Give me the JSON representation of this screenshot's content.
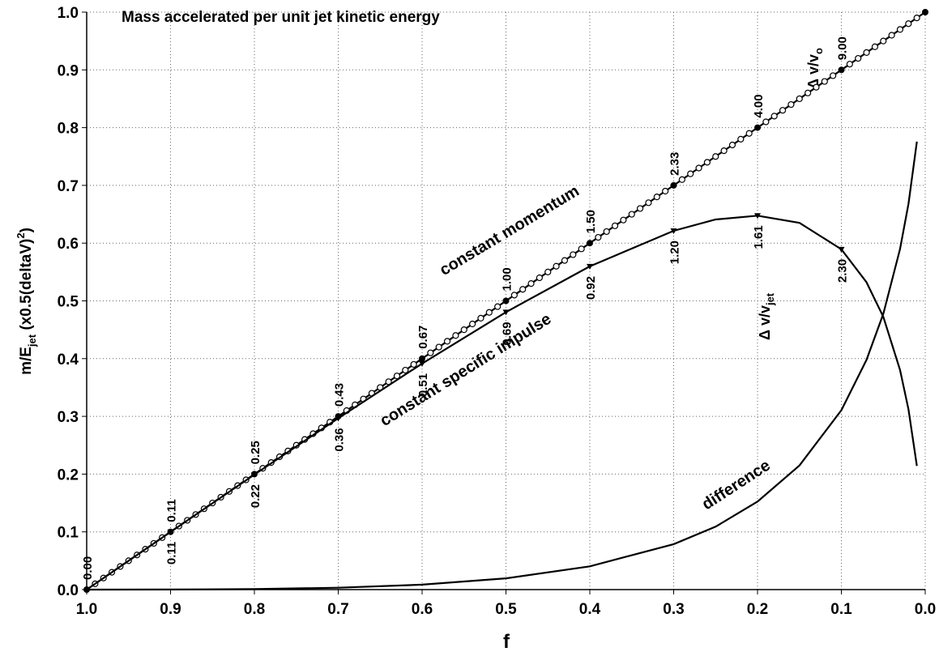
{
  "chart_data": {
    "type": "line",
    "title": "Mass accelerated per unit jet kinetic energy",
    "xlabel": "f",
    "ylabel_parts": [
      "m/E",
      "jet",
      "  (x0.5(deltaV)",
      "2",
      ")"
    ],
    "xlim": [
      1.0,
      0.0
    ],
    "ylim": [
      0,
      1
    ],
    "xticks": [
      {
        "value": 1,
        "label": "1.0"
      },
      0.9,
      0.8,
      0.7,
      0.6,
      0.5,
      0.4,
      0.3,
      0.2,
      0.1,
      {
        "value": 0,
        "label": "0.0"
      }
    ],
    "yticks": [
      {
        "value": 0,
        "label": "0.0"
      },
      0.1,
      0.2,
      0.3,
      0.4,
      0.5,
      0.6,
      0.7,
      0.8,
      0.9,
      {
        "value": 1,
        "label": "1.0"
      }
    ],
    "grid": true,
    "series": [
      {
        "name": "constant momentum",
        "color": "#000000",
        "marker": "open-circle",
        "x": [
          1.0,
          0.9,
          0.8,
          0.7,
          0.6,
          0.5,
          0.4,
          0.3,
          0.2,
          0.1,
          0.0
        ],
        "values": [
          0,
          0.1,
          0.2,
          0.3,
          0.4,
          0.5,
          0.6,
          0.7,
          0.8,
          0.9,
          1.0
        ],
        "point_labels": [
          "0.00",
          "0.11",
          "0.25",
          "0.43",
          "0.67",
          "1.00",
          "1.50",
          "2.33",
          "4.00",
          "9.00",
          null
        ]
      },
      {
        "name": "constant specific impulse",
        "color": "#000000",
        "marker": "triangle",
        "x": [
          1.0,
          0.9,
          0.8,
          0.7,
          0.6,
          0.5,
          0.4,
          0.3,
          0.25,
          0.2,
          0.15,
          0.1,
          0.07,
          0.05,
          0.03,
          0.02,
          0.01
        ],
        "values": [
          0,
          0.0999,
          0.1991,
          0.2968,
          0.3914,
          0.4805,
          0.5597,
          0.6213,
          0.641,
          0.6476,
          0.635,
          0.5893,
          0.5323,
          0.4723,
          0.3803,
          0.3123,
          0.2142
        ],
        "point_labels": [
          null,
          "0.11",
          "0.22",
          "0.36",
          "0.51",
          "0.69",
          "0.92",
          "1.20",
          null,
          "1.61",
          null,
          "2.30",
          null,
          null,
          null,
          null,
          null
        ]
      },
      {
        "name": "difference",
        "color": "#000000",
        "marker": "none",
        "x": [
          1.0,
          0.9,
          0.8,
          0.7,
          0.6,
          0.5,
          0.4,
          0.3,
          0.25,
          0.2,
          0.15,
          0.1,
          0.07,
          0.05,
          0.03,
          0.02,
          0.01
        ],
        "values": [
          0,
          0.0001,
          0.0009,
          0.0032,
          0.0086,
          0.0195,
          0.0403,
          0.0787,
          0.109,
          0.1524,
          0.215,
          0.3107,
          0.3977,
          0.4777,
          0.5897,
          0.6677,
          0.7758
        ],
        "point_labels": [
          null,
          null,
          null,
          null,
          null,
          null,
          null,
          null,
          null,
          null,
          null,
          null,
          null,
          null,
          null,
          null,
          null
        ]
      }
    ],
    "annotations": {
      "momentum_ratio": [
        "Δ v/v",
        "o"
      ],
      "jet_ratio": [
        "Δ v/v",
        "jet"
      ]
    }
  }
}
